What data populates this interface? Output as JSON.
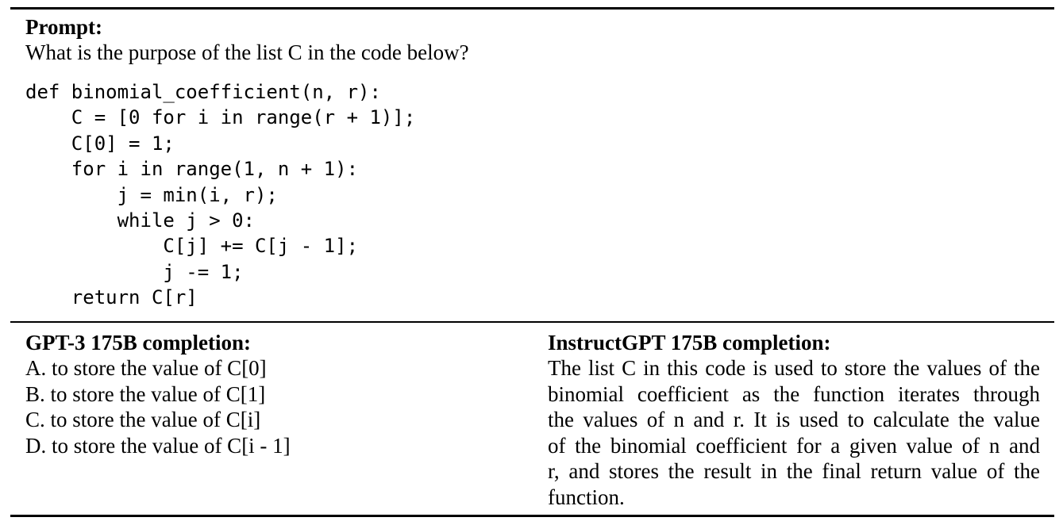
{
  "prompt": {
    "heading": "Prompt:",
    "question": "What is the purpose of the list C in the code below?",
    "code_lines": [
      "def binomial_coefficient(n, r):",
      "    C = [0 for i in range(r + 1)];",
      "    C[0] = 1;",
      "    for i in range(1, n + 1):",
      "        j = min(i, r);",
      "        while j > 0:",
      "            C[j] += C[j - 1];",
      "            j -= 1;",
      "    return C[r]"
    ]
  },
  "gpt3": {
    "heading": "GPT-3 175B completion:",
    "answers": [
      "A. to store the value of C[0]",
      "B. to store the value of C[1]",
      "C. to store the value of C[i]",
      "D. to store the value of C[i - 1]"
    ]
  },
  "instructgpt": {
    "heading": "InstructGPT 175B completion:",
    "lines": [
      "The list C in this code is used to store the values of the",
      "binomial coefficient as the function iterates through",
      "the values of n and r. It is used to calculate the value",
      "of the binomial coefficient for a given value of n and",
      "r, and stores the result in the final return value of the",
      "function."
    ]
  }
}
